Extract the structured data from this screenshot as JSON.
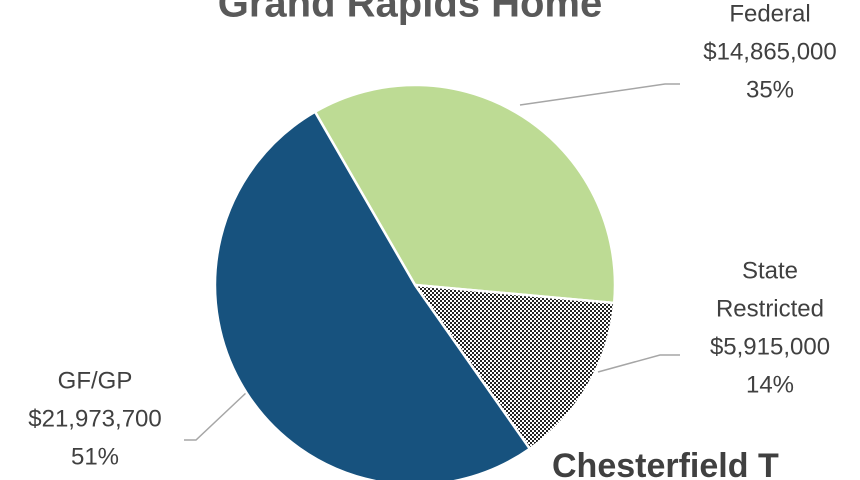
{
  "chart_data": {
    "type": "pie",
    "title": "Grand Rapids Home",
    "annotation": "Chesterfield T",
    "categories": [
      "Federal",
      [
        "State",
        "Restricted"
      ],
      "GF/GP"
    ],
    "values": [
      14865000,
      5915000,
      21973700
    ],
    "value_labels": [
      "$14,865,000",
      "$5,915,000",
      "$21,973,700"
    ],
    "percent_labels": [
      "35%",
      "14%",
      "51%"
    ],
    "colors": [
      "#bddb94",
      "checker",
      "#17527e"
    ],
    "start_angle": -30
  }
}
